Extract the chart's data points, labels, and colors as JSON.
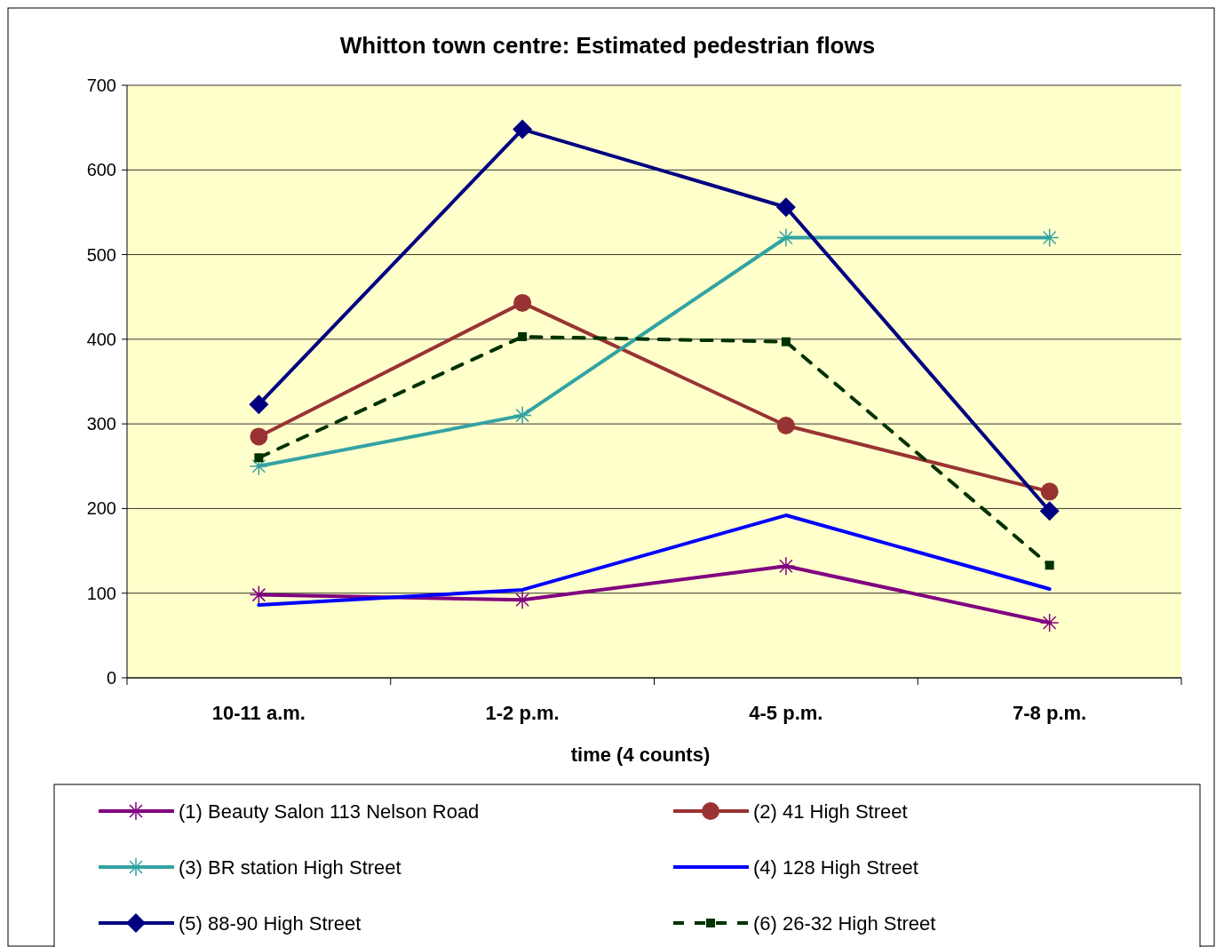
{
  "chart_data": {
    "type": "line",
    "title": "Whitton town centre: Estimated pedestrian flows",
    "xlabel": "time (4 counts)",
    "categories": [
      "10-11 a.m.",
      "1-2 p.m.",
      "4-5 p.m.",
      "7-8 p.m."
    ],
    "series": [
      {
        "name": "(1) Beauty Salon 113 Nelson Road",
        "color": "#800080",
        "marker": "cross",
        "values": [
          98,
          92,
          132,
          65
        ]
      },
      {
        "name": "(2) 41 High Street",
        "color": "#993333",
        "marker": "circle",
        "values": [
          285,
          443,
          298,
          220
        ]
      },
      {
        "name": "(3) BR station High Street",
        "color": "#33a3a3",
        "marker": "cross",
        "values": [
          250,
          310,
          520,
          520
        ]
      },
      {
        "name": "(4) 128 High Street",
        "color": "#0000ff",
        "marker": "none",
        "values": [
          86,
          104,
          192,
          105
        ]
      },
      {
        "name": "(5) 88-90 High Street",
        "color": "#000080",
        "marker": "diamond",
        "values": [
          323,
          648,
          556,
          197
        ]
      },
      {
        "name": "(6) 26-32 High Street",
        "color": "#003300",
        "marker": "square",
        "line_style": "dashed",
        "values": [
          260,
          403,
          397,
          133
        ]
      }
    ],
    "ylim": [
      0,
      700
    ],
    "yticks": [
      0,
      100,
      200,
      300,
      400,
      500,
      600,
      700
    ],
    "grid": "y",
    "legend": "bottom"
  }
}
